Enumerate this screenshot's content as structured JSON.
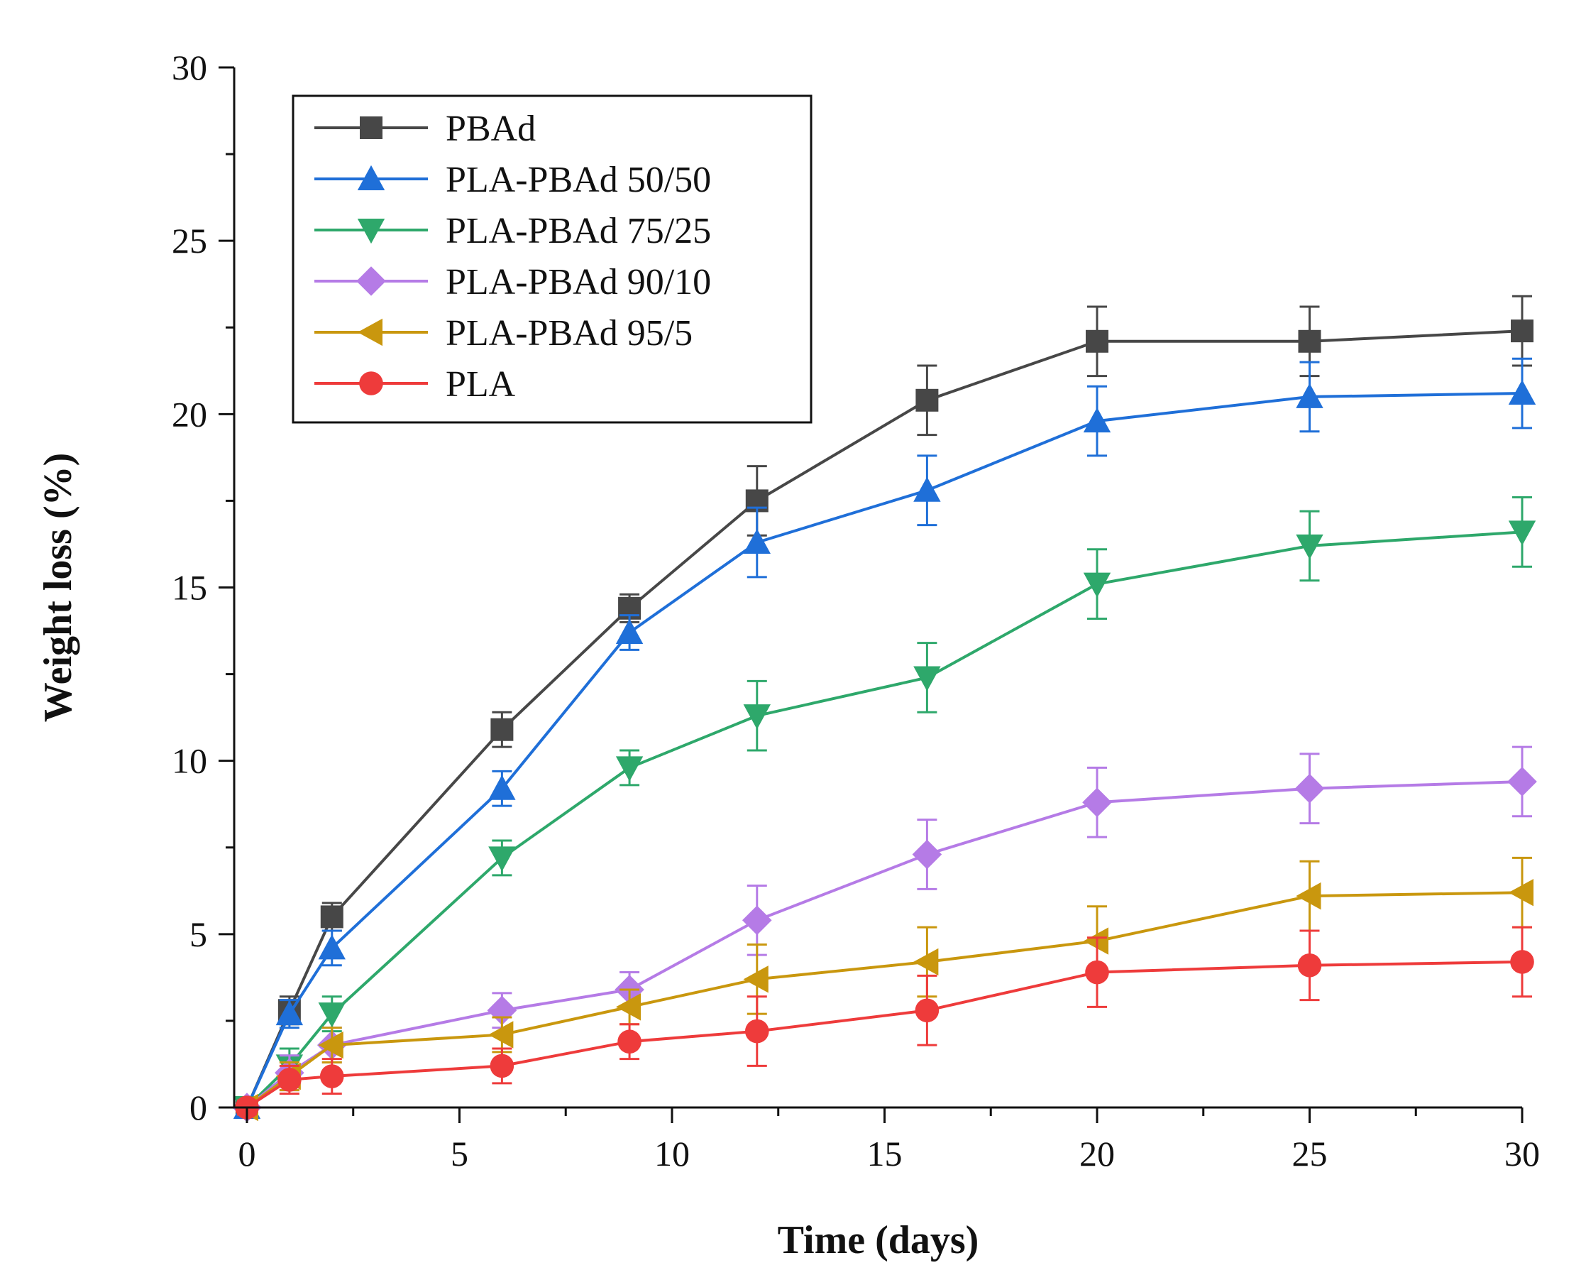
{
  "chart_data": {
    "type": "line",
    "title": "",
    "xlabel": "Time (days)",
    "ylabel": "Weight loss (%)",
    "xlim": [
      -0.3,
      30
    ],
    "ylim": [
      0,
      30
    ],
    "xticks": [
      0,
      5,
      10,
      15,
      20,
      25,
      30
    ],
    "yticks": [
      0,
      5,
      10,
      15,
      20,
      25,
      30
    ],
    "grid": false,
    "legend_position": "top-left",
    "x": [
      0,
      1,
      2,
      6,
      9,
      12,
      16,
      20,
      25,
      30
    ],
    "series": [
      {
        "name": "PBAd",
        "marker": "square",
        "color": "#474747",
        "values": [
          0,
          2.8,
          5.5,
          10.9,
          14.4,
          17.5,
          20.4,
          22.1,
          22.1,
          22.4
        ],
        "errors": [
          0.2,
          0.4,
          0.4,
          0.5,
          0.4,
          1.0,
          1.0,
          1.0,
          1.0,
          1.0
        ]
      },
      {
        "name": "PLA-PBAd 50/50",
        "marker": "triangle-up",
        "color": "#1f6fd8",
        "values": [
          0,
          2.7,
          4.6,
          9.2,
          13.7,
          16.3,
          17.8,
          19.8,
          20.5,
          20.6
        ],
        "errors": [
          0.2,
          0.4,
          0.5,
          0.5,
          0.5,
          1.0,
          1.0,
          1.0,
          1.0,
          1.0
        ]
      },
      {
        "name": "PLA-PBAd 75/25",
        "marker": "triangle-down",
        "color": "#2ea86b",
        "values": [
          0,
          1.2,
          2.7,
          7.2,
          9.8,
          11.3,
          12.4,
          15.1,
          16.2,
          16.6
        ],
        "errors": [
          0.2,
          0.5,
          0.5,
          0.5,
          0.5,
          1.0,
          1.0,
          1.0,
          1.0,
          1.0
        ]
      },
      {
        "name": "PLA-PBAd 90/10",
        "marker": "diamond",
        "color": "#b57be6",
        "values": [
          0,
          1.0,
          1.8,
          2.8,
          3.4,
          5.4,
          7.3,
          8.8,
          9.2,
          9.4
        ],
        "errors": [
          0.2,
          0.5,
          0.5,
          0.5,
          0.5,
          1.0,
          1.0,
          1.0,
          1.0,
          1.0
        ]
      },
      {
        "name": "PLA-PBAd 95/5",
        "marker": "triangle-left",
        "color": "#c9970e",
        "values": [
          0,
          0.9,
          1.8,
          2.1,
          2.9,
          3.7,
          4.2,
          4.8,
          6.1,
          6.2
        ],
        "errors": [
          0.2,
          0.4,
          0.5,
          0.5,
          0.5,
          1.0,
          1.0,
          1.0,
          1.0,
          1.0
        ]
      },
      {
        "name": "PLA",
        "marker": "circle",
        "color": "#ee3b3b",
        "values": [
          0,
          0.8,
          0.9,
          1.2,
          1.9,
          2.2,
          2.8,
          3.9,
          4.1,
          4.2
        ],
        "errors": [
          0.2,
          0.4,
          0.5,
          0.5,
          0.5,
          1.0,
          1.0,
          1.0,
          1.0,
          1.0
        ]
      }
    ]
  }
}
